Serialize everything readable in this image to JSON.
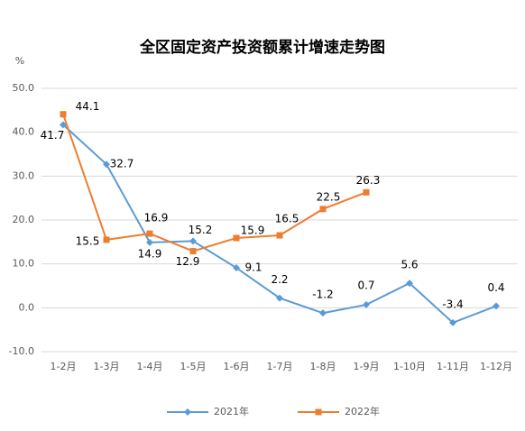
{
  "chart_data": {
    "type": "line",
    "title": "全区固定资产投资额累计增速走势图",
    "y_unit": "%",
    "categories": [
      "1-2月",
      "1-3月",
      "1-4月",
      "1-5月",
      "1-6月",
      "1-7月",
      "1-8月",
      "1-9月",
      "1-10月",
      "1-11月",
      "1-12月"
    ],
    "series": [
      {
        "name": "2021年",
        "color": "#5b9bd5",
        "marker": "diamond",
        "values": [
          41.7,
          32.7,
          14.9,
          15.2,
          9.1,
          2.2,
          -1.2,
          0.7,
          5.6,
          -3.4,
          0.4
        ]
      },
      {
        "name": "2022年",
        "color": "#ed7d31",
        "marker": "square",
        "values": [
          44.1,
          15.5,
          16.9,
          12.9,
          15.9,
          16.5,
          22.5,
          26.3,
          null,
          null,
          null
        ]
      }
    ],
    "ylim": [
      -10,
      50
    ],
    "yticks": [
      {
        "value": -10,
        "label": "-10.0"
      },
      {
        "value": 0,
        "label": "0.0"
      },
      {
        "value": 10,
        "label": "10.0"
      },
      {
        "value": 20,
        "label": "20.0"
      },
      {
        "value": 30,
        "label": "30.0"
      },
      {
        "value": 40,
        "label": "40.0"
      },
      {
        "value": 50,
        "label": "50.0"
      }
    ],
    "grid": true,
    "legend": "bottom"
  }
}
